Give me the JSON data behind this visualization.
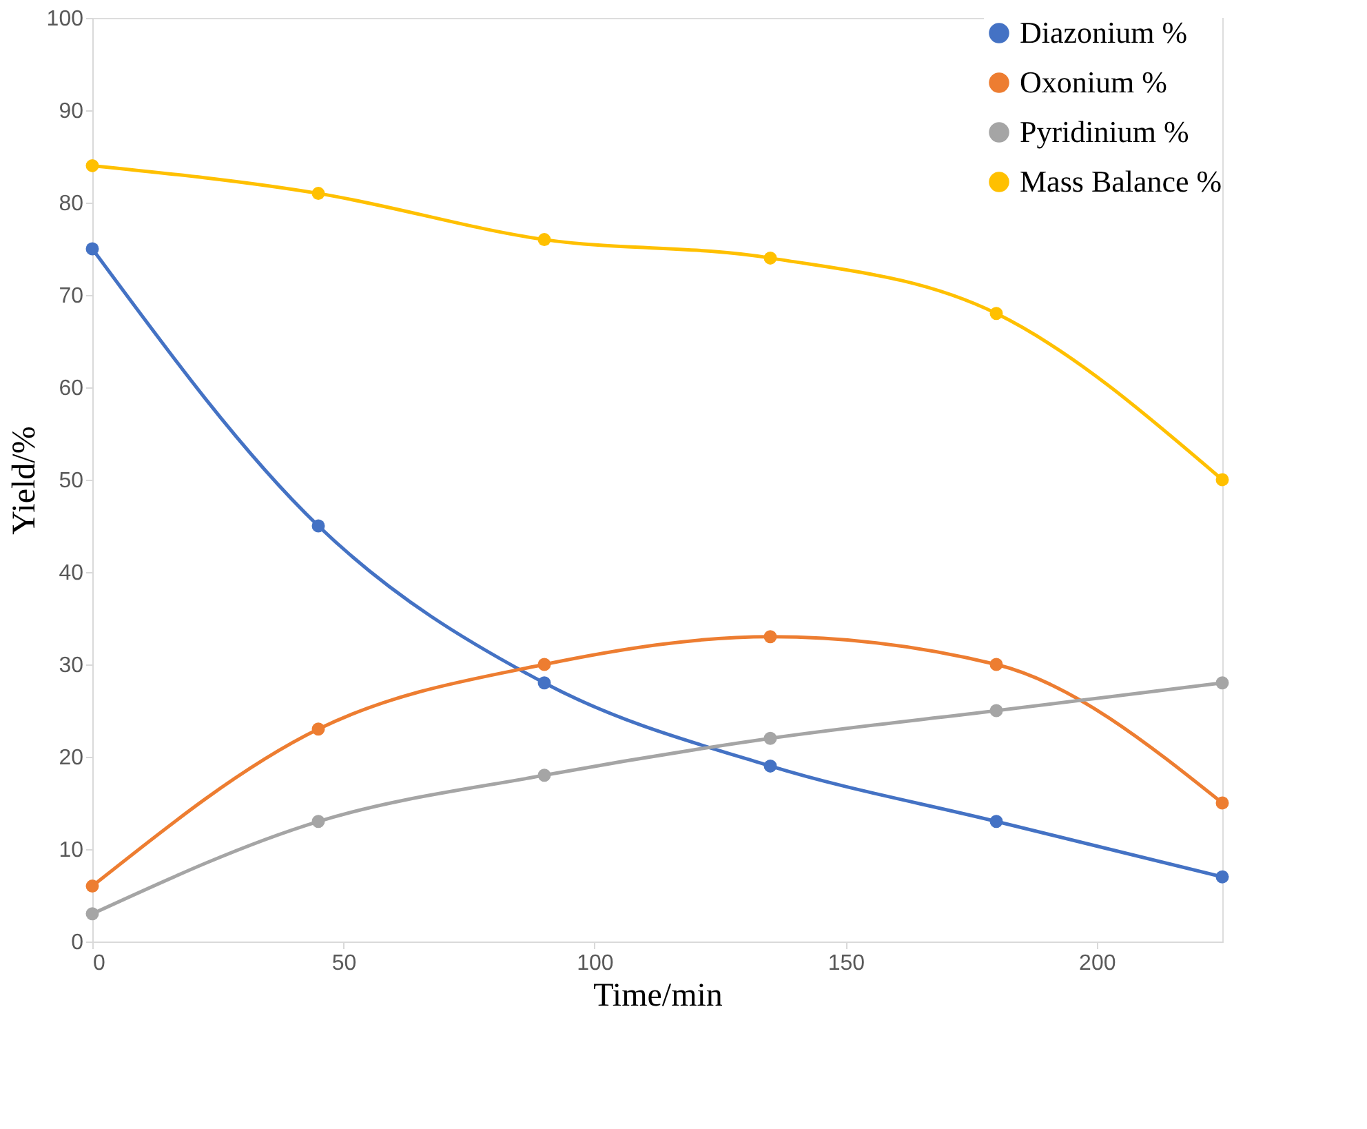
{
  "chart_data": {
    "type": "line",
    "xlabel": "Time/min",
    "ylabel": "Yield/%",
    "x": [
      0,
      45,
      90,
      135,
      180,
      225
    ],
    "series": [
      {
        "name": "Diazonium %",
        "color": "#4472c4",
        "values": [
          75,
          45,
          28,
          19,
          13,
          7
        ]
      },
      {
        "name": "Oxonium %",
        "color": "#ed7d31",
        "values": [
          6,
          23,
          30,
          33,
          30,
          15
        ]
      },
      {
        "name": "Pyridinium %",
        "color": "#a5a5a5",
        "values": [
          3,
          13,
          18,
          22,
          25,
          28
        ]
      },
      {
        "name": "Mass Balance %",
        "color": "#ffc000",
        "values": [
          84,
          81,
          76,
          74,
          68,
          50
        ]
      }
    ],
    "xlim": [
      0,
      225
    ],
    "xticks": [
      0,
      50,
      100,
      150,
      200
    ],
    "ylim": [
      0,
      100
    ],
    "yticks": [
      0,
      10,
      20,
      30,
      40,
      50,
      60,
      70,
      80,
      90,
      100
    ],
    "grid": false,
    "legend": "top right",
    "marker": "circle",
    "line_style": "solid"
  }
}
